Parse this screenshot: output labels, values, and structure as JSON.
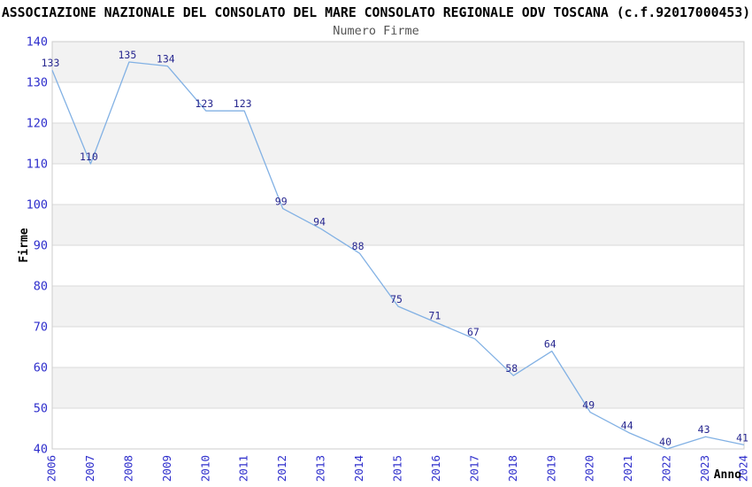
{
  "chart_data": {
    "type": "line",
    "title": "ASSOCIAZIONE NAZIONALE DEL CONSOLATO DEL MARE CONSOLATO REGIONALE ODV TOSCANA (c.f.92017000453)",
    "subtitle": "Numero Firme",
    "xlabel": "Anno",
    "ylabel": "Firme",
    "categories": [
      "2006",
      "2007",
      "2008",
      "2009",
      "2010",
      "2011",
      "2012",
      "2013",
      "2014",
      "2015",
      "2016",
      "2017",
      "2018",
      "2019",
      "2020",
      "2021",
      "2022",
      "2023",
      "2024"
    ],
    "values": [
      133,
      110,
      135,
      134,
      123,
      123,
      99,
      94,
      88,
      75,
      71,
      67,
      58,
      64,
      49,
      44,
      40,
      43,
      41
    ],
    "ylim": [
      40,
      140
    ],
    "ytick_step": 10,
    "grid": true,
    "banded_background": true,
    "legend": "none",
    "point_labels_shown": true,
    "colors": {
      "line": "#82b1e4",
      "value_label": "#26268f",
      "axis_tick_label": "#2e2ecc",
      "band_fill": "#f2f2f2",
      "grid_line": "#d9d9d9",
      "plot_border": "#cccccc",
      "title_text": "#000000",
      "subtitle_text": "#555555",
      "axis_title_text": "#000000",
      "background": "#ffffff"
    }
  }
}
